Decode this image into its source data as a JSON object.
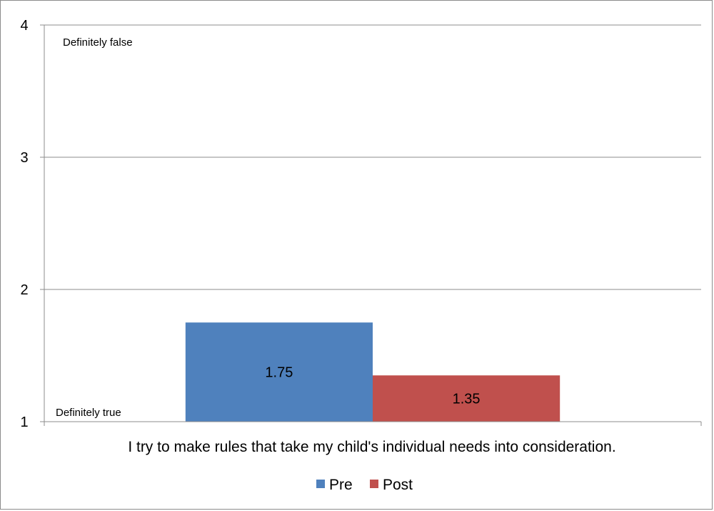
{
  "chart_data": {
    "type": "bar",
    "categories": [
      "I try to make rules that take my child's individual needs into consideration."
    ],
    "series": [
      {
        "name": "Pre",
        "values": [
          1.75
        ],
        "color": "#4f81bd",
        "label": "1.75"
      },
      {
        "name": "Post",
        "values": [
          1.35
        ],
        "color": "#c0504d",
        "label": "1.35"
      }
    ],
    "ylim": [
      1,
      4
    ],
    "yticks": [
      "1",
      "2",
      "3",
      "4"
    ],
    "grid": true,
    "legend_position": "bottom",
    "annotations": {
      "top": "Definitely false",
      "bottom": "Definitely true"
    }
  }
}
